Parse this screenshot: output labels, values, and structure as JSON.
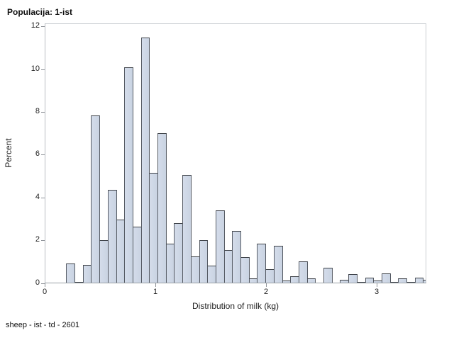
{
  "header": {
    "title": "Populacija: 1-ist"
  },
  "footer": {
    "note": "sheep - ist - td - 2601"
  },
  "chart_data": {
    "type": "bar",
    "subtype": "histogram",
    "title": "Populacija: 1-ist",
    "xlabel": "Distribution of milk (kg)",
    "ylabel": "Percent",
    "footnote": "sheep - ist - td - 2601",
    "xlim": [
      0,
      3.45
    ],
    "ylim": [
      0,
      12
    ],
    "x_ticks": [
      0,
      1,
      2,
      3
    ],
    "y_ticks": [
      0,
      2,
      4,
      6,
      8,
      10,
      12
    ],
    "grid": "off",
    "legend": "none",
    "bin_start_kg": 0.188,
    "bin_width_kg": 0.075,
    "values_percent": [
      0.95,
      0.1,
      0.9,
      7.9,
      2.05,
      4.4,
      3.0,
      10.15,
      2.7,
      11.55,
      5.2,
      7.05,
      1.9,
      2.85,
      5.1,
      1.3,
      2.05,
      0.85,
      3.45,
      1.6,
      2.5,
      1.25,
      0.25,
      1.9,
      0.7,
      1.8,
      0.15,
      0.35,
      1.05,
      0.25,
      0.05,
      0.75,
      0.05,
      0.2,
      0.45,
      0.1,
      0.3,
      0.15,
      0.5,
      0.1,
      0.25,
      0.1,
      0.3,
      0.2
    ],
    "colors": {
      "bar_fill": "#cdd6e4",
      "bar_border": "#565b64",
      "frame_border": "#c9cdd1",
      "axis_line": "#9aa0a6",
      "text": "#222222"
    }
  }
}
